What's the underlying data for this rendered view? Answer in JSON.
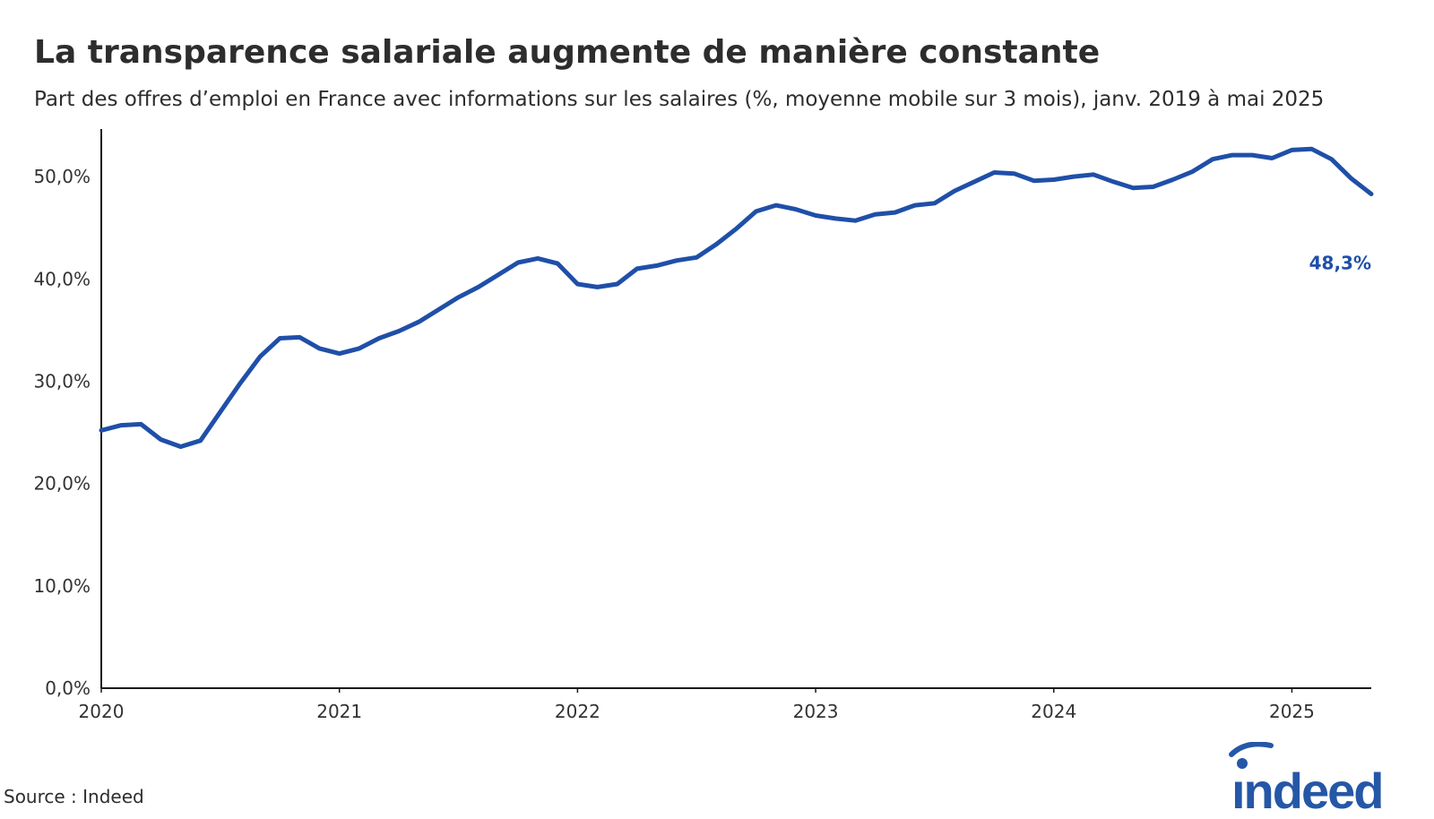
{
  "header": {
    "title": "La transparence salariale augmente de manière constante",
    "subtitle": "Part des offres d’emploi en France avec informations sur les salaires (%, moyenne mobile sur 3 mois), janv. 2019 à mai 2025"
  },
  "footer": {
    "source": "Source : Indeed",
    "logo_text": "indeed"
  },
  "colors": {
    "line": "#1f4fa8",
    "axis": "#1a1a1a",
    "text": "#2d2d2d",
    "brand": "#2557a7"
  },
  "chart_data": {
    "type": "line",
    "title": "La transparence salariale augmente de manière constante",
    "subtitle": "Part des offres d’emploi en France avec informations sur les salaires (%, moyenne mobile sur 3 mois), janv. 2019 à mai 2025",
    "xlabel": "",
    "ylabel": "",
    "grid": false,
    "xlim": [
      "2020-01",
      "2025-05"
    ],
    "ylim": [
      0,
      55
    ],
    "x_ticks": [
      "2020",
      "2021",
      "2022",
      "2023",
      "2024",
      "2025"
    ],
    "y_ticks": [
      "0,0%",
      "10,0%",
      "20,0%",
      "30,0%",
      "40,0%",
      "50,0%"
    ],
    "y_tick_values": [
      0,
      10,
      20,
      30,
      40,
      50
    ],
    "end_label": "48,3%",
    "series": [
      {
        "x": [
          "2020-01",
          "2020-02",
          "2020-03",
          "2020-04",
          "2020-05",
          "2020-06",
          "2020-07",
          "2020-08",
          "2020-09",
          "2020-10",
          "2020-11",
          "2020-12",
          "2021-01",
          "2021-02",
          "2021-03",
          "2021-04",
          "2021-05",
          "2021-06",
          "2021-07",
          "2021-08",
          "2021-09",
          "2021-10",
          "2021-11",
          "2021-12",
          "2022-01",
          "2022-02",
          "2022-03",
          "2022-04",
          "2022-05",
          "2022-06",
          "2022-07",
          "2022-08",
          "2022-09",
          "2022-10",
          "2022-11",
          "2022-12",
          "2023-01",
          "2023-02",
          "2023-03",
          "2023-04",
          "2023-05",
          "2023-06",
          "2023-07",
          "2023-08",
          "2023-09",
          "2023-10",
          "2023-11",
          "2023-12",
          "2024-01",
          "2024-02",
          "2024-03",
          "2024-04",
          "2024-05",
          "2024-06",
          "2024-07",
          "2024-08",
          "2024-09",
          "2024-10",
          "2024-11",
          "2024-12",
          "2025-01",
          "2025-02",
          "2025-03",
          "2025-04",
          "2025-05"
        ],
        "values": [
          25.2,
          25.7,
          25.8,
          24.3,
          23.6,
          24.2,
          27.0,
          29.8,
          32.4,
          34.2,
          34.3,
          33.2,
          32.7,
          33.2,
          34.2,
          34.9,
          35.8,
          37.0,
          38.2,
          39.2,
          40.4,
          41.6,
          42.0,
          41.5,
          39.5,
          39.2,
          39.5,
          41.0,
          41.3,
          41.8,
          42.1,
          43.4,
          44.9,
          46.6,
          47.2,
          46.8,
          46.2,
          45.9,
          45.7,
          46.3,
          46.5,
          47.2,
          47.4,
          48.6,
          49.5,
          50.4,
          50.3,
          49.6,
          49.7,
          50.0,
          50.2,
          49.5,
          48.9,
          49.0,
          49.7,
          50.5,
          51.7,
          52.1,
          52.1,
          51.8,
          52.6,
          52.7,
          51.7,
          49.8,
          48.3
        ]
      }
    ]
  }
}
